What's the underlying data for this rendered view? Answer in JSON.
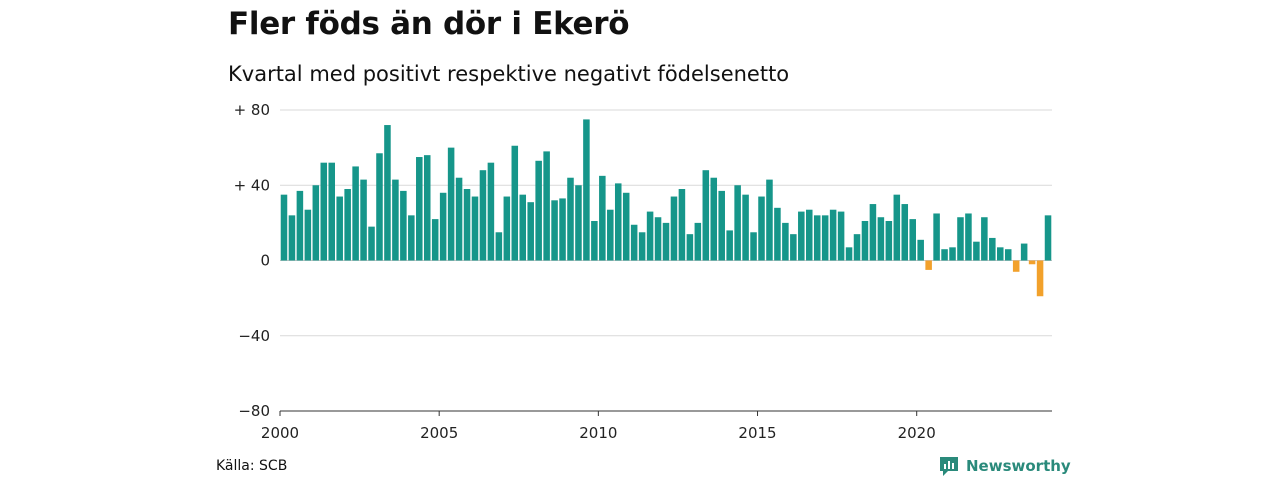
{
  "title": "Fler föds än dör i Ekerö",
  "subtitle": "Kvartal med positivt respektive negativt födelsenetto",
  "source": "Källa: SCB",
  "brand": {
    "name": "Newsworthy",
    "icon": "newsworthy-logo-icon"
  },
  "colors": {
    "positive": "#16968a",
    "negative": "#f2a12b",
    "grid": "#d9d9d9",
    "brand": "#2a8a7b"
  },
  "chart_data": {
    "type": "bar",
    "x_ticks": [
      "2000",
      "2005",
      "2010",
      "2015",
      "2020"
    ],
    "y_ticks": [
      "+ 80",
      "+ 40",
      "0",
      "−40",
      "−80"
    ],
    "ylim": [
      -80,
      80
    ],
    "grid": true,
    "start": "2000 Q1",
    "frequency": "quarterly",
    "values": [
      35,
      24,
      37,
      27,
      40,
      52,
      52,
      34,
      38,
      50,
      43,
      18,
      57,
      72,
      43,
      37,
      24,
      55,
      56,
      22,
      36,
      60,
      44,
      38,
      34,
      48,
      52,
      15,
      34,
      61,
      35,
      31,
      53,
      58,
      32,
      33,
      44,
      40,
      75,
      21,
      45,
      27,
      41,
      36,
      19,
      15,
      26,
      23,
      20,
      34,
      38,
      14,
      20,
      48,
      44,
      37,
      16,
      40,
      35,
      15,
      34,
      43,
      28,
      20,
      14,
      26,
      27,
      24,
      24,
      27,
      26,
      7,
      14,
      21,
      30,
      23,
      21,
      35,
      30,
      22,
      11,
      -5,
      25,
      6,
      7,
      23,
      25,
      10,
      23,
      12,
      7,
      6,
      -6,
      9,
      -2,
      -19,
      24
    ]
  }
}
